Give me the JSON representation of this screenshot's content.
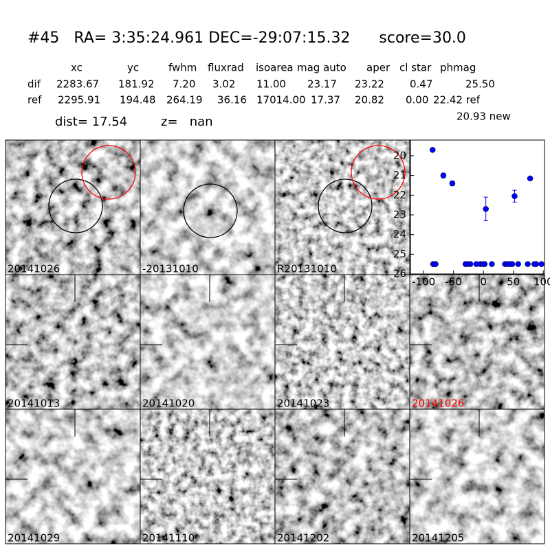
{
  "header": {
    "title": "#45   RA= 3:35:24.961 DEC=-29:07:15.32      score=30.0"
  },
  "table": {
    "header": [
      "xc",
      "yc",
      "fwhm",
      "fluxrad",
      "isoarea",
      "mag auto",
      "aper",
      "cl star",
      "phmag"
    ],
    "rows": [
      [
        "dif",
        "2283.67",
        "181.92",
        "7.20",
        "3.02",
        "11.00",
        "23.17",
        "23.22",
        "0.47",
        "25.50"
      ],
      [
        "ref",
        "2295.91",
        "194.48",
        "264.19",
        "36.16",
        "17014.00",
        "17.37",
        "20.82",
        "0.00",
        "22.42 ref"
      ]
    ],
    "extra": "20.93 new",
    "dist": "dist= 17.54",
    "z": "z=   nan"
  },
  "panels": [
    {
      "label": "20141026",
      "color": "#000000"
    },
    {
      "label": "-20131010",
      "color": "#000000"
    },
    {
      "label": "R20131010",
      "color": "#000000"
    },
    {
      "label": "20141013",
      "color": "#000000"
    },
    {
      "label": "20141020",
      "color": "#000000"
    },
    {
      "label": "20141023",
      "color": "#000000"
    },
    {
      "label": "20141026",
      "color": "#ff0000"
    },
    {
      "label": "20141029",
      "color": "#000000"
    },
    {
      "label": "20141110",
      "color": "#000000"
    },
    {
      "label": "20141202",
      "color": "#000000"
    },
    {
      "label": "20141205",
      "color": "#000000"
    }
  ],
  "chart_data": {
    "type": "scatter",
    "xlim": [
      -122,
      102
    ],
    "ylim": [
      26,
      19.2
    ],
    "xticks": [
      -100,
      -50,
      0,
      50,
      100
    ],
    "yticks": [
      20,
      21,
      22,
      23,
      24,
      25,
      26
    ],
    "series": [
      {
        "color": "#0000ff",
        "x": [
          -85,
          -84,
          -82,
          -80,
          -67,
          -52,
          -30,
          -27,
          -22,
          -12,
          -5,
          0,
          2,
          4,
          14,
          36,
          40,
          45,
          48,
          52,
          58,
          74,
          78,
          85,
          88,
          97
        ],
        "values": [
          19.7,
          25.5,
          25.5,
          25.5,
          21.0,
          21.4,
          25.5,
          25.5,
          25.5,
          25.5,
          25.5,
          25.5,
          25.5,
          22.7,
          25.5,
          25.5,
          25.5,
          25.5,
          25.5,
          22.05,
          25.5,
          25.5,
          21.15,
          25.5,
          25.5,
          25.5
        ],
        "errors": [
          null,
          null,
          null,
          null,
          0.12,
          0.12,
          null,
          null,
          null,
          null,
          null,
          null,
          null,
          0.6,
          null,
          null,
          null,
          null,
          null,
          0.3,
          null,
          null,
          0.08,
          null,
          null,
          null
        ]
      }
    ]
  }
}
